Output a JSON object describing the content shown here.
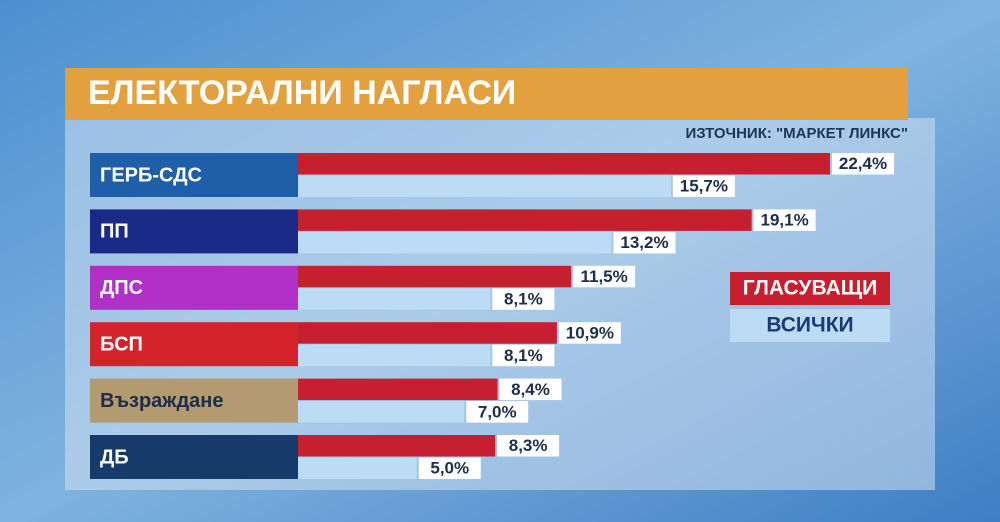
{
  "chart_data": {
    "type": "bar",
    "orientation": "horizontal",
    "title": "ЕЛЕКТОРАЛНИ НАГЛАСИ",
    "source": "ИЗТОЧНИК: \"МАРКЕТ ЛИНКС\"",
    "categories": [
      "ГЕРБ-СДС",
      "ПП",
      "ДПС",
      "БСП",
      "Възраждане",
      "ДБ"
    ],
    "category_colors": [
      "#1f5ea8",
      "#1b2a86",
      "#b030c8",
      "#d4232b",
      "#b39a70",
      "#163a6a"
    ],
    "series": [
      {
        "name": "ГЛАСУВАЩИ",
        "color": "#c62030",
        "values": [
          22.4,
          19.1,
          11.5,
          10.9,
          8.4,
          8.3
        ],
        "value_labels": [
          "22,4%",
          "19,1%",
          "11,5%",
          "10,9%",
          "8,4%",
          "8,3%"
        ]
      },
      {
        "name": "ВСИЧКИ",
        "color": "#bcdcf5",
        "values": [
          15.7,
          13.2,
          8.1,
          8.1,
          7.0,
          5.0
        ],
        "value_labels": [
          "15,7%",
          "13,2%",
          "8,1%",
          "8,1%",
          "7,0%",
          "5,0%"
        ]
      }
    ]
  }
}
